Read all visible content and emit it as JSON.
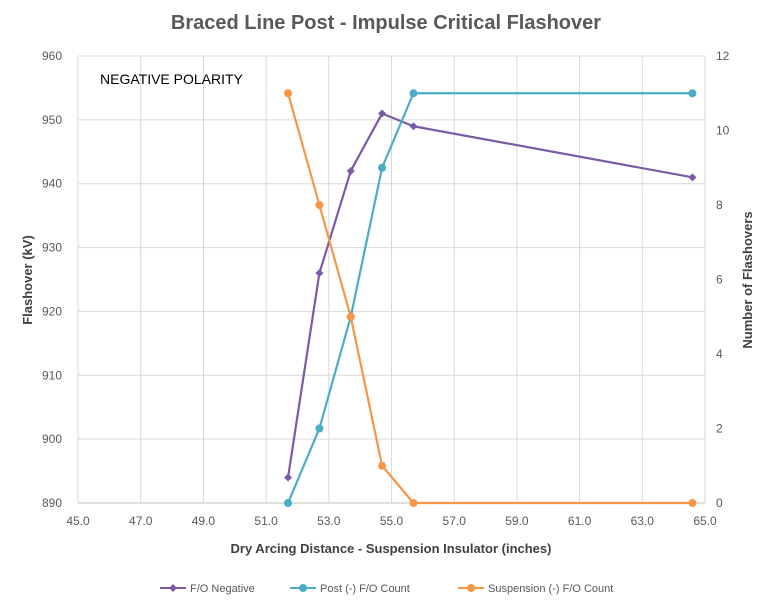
{
  "chart_data": {
    "type": "line",
    "title": "Braced Line Post - Impulse Critical Flashover",
    "annotation": "NEGATIVE POLARITY",
    "xlabel": "Dry Arcing Distance - Suspension Insulator (inches)",
    "ylabel": "Flashover (kV)",
    "y2label": "Number of Flashovers",
    "xlim": [
      45,
      65
    ],
    "ylim": [
      890,
      960
    ],
    "y2lim": [
      0,
      12
    ],
    "x_ticks": [
      "45.0",
      "47.0",
      "49.0",
      "51.0",
      "53.0",
      "55.0",
      "57.0",
      "59.0",
      "61.0",
      "63.0",
      "65.0"
    ],
    "y_ticks": [
      "890",
      "900",
      "910",
      "920",
      "930",
      "940",
      "950",
      "960"
    ],
    "y2_ticks": [
      "0",
      "2",
      "4",
      "6",
      "8",
      "10",
      "12"
    ],
    "grid": true,
    "legend_position": "bottom",
    "series": [
      {
        "name": "F/O Negative",
        "axis": "left",
        "color": "#7b5aa6",
        "marker": "diamond",
        "x": [
          51.7,
          52.7,
          53.7,
          54.7,
          55.7,
          64.6
        ],
        "values": [
          894,
          926,
          942,
          951,
          949,
          941
        ]
      },
      {
        "name": "Post (-) F/O Count",
        "axis": "right",
        "color": "#4bacc6",
        "marker": "circle",
        "x": [
          51.7,
          52.7,
          53.7,
          54.7,
          55.7,
          64.6
        ],
        "values": [
          0,
          2,
          5,
          9,
          11,
          11
        ]
      },
      {
        "name": "Suspension (-) F/O Count",
        "axis": "right",
        "color": "#f79646",
        "marker": "circle",
        "x": [
          51.7,
          52.7,
          53.7,
          54.7,
          55.7,
          64.6
        ],
        "values": [
          11,
          8,
          5,
          1,
          0,
          0
        ]
      }
    ]
  }
}
